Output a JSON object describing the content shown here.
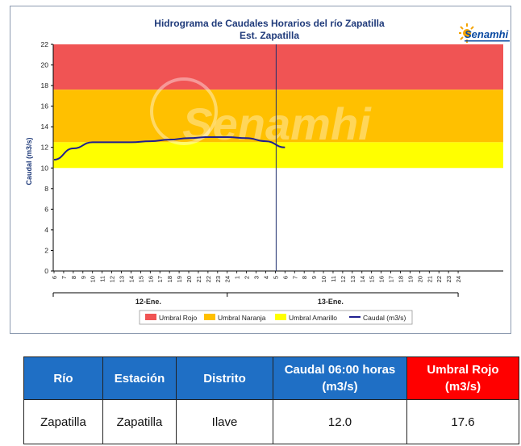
{
  "chart_data": {
    "type": "line",
    "title": "Hidrograma de Caudales Horarios del río Zapatilla",
    "subtitle": "Est. Zapatilla",
    "ylabel": "Caudal  (m3/s)",
    "xlabel": "",
    "ylim": [
      0,
      22
    ],
    "yticks": [
      0,
      2,
      4,
      6,
      8,
      10,
      12,
      14,
      16,
      18,
      20,
      22
    ],
    "x_tick_labels": [
      "6",
      "7",
      "8",
      "9",
      "10",
      "11",
      "12",
      "13",
      "14",
      "15",
      "16",
      "17",
      "18",
      "19",
      "20",
      "21",
      "22",
      "23",
      "24",
      "1",
      "2",
      "3",
      "4",
      "5",
      "6",
      "7",
      "8",
      "9",
      "10",
      "11",
      "12",
      "13",
      "14",
      "15",
      "16",
      "17",
      "18",
      "19",
      "20",
      "21",
      "22",
      "23",
      "24"
    ],
    "day_labels": [
      "12-Ene.",
      "13-Ene."
    ],
    "bands": [
      {
        "name": "Umbral Rojo",
        "from": 17.6,
        "to": 22,
        "color": "#f05454"
      },
      {
        "name": "Umbral Naranja",
        "from": 12.5,
        "to": 17.6,
        "color": "#ffc000"
      },
      {
        "name": "Umbral Amarillo",
        "from": 10.0,
        "to": 12.5,
        "color": "#ffff00"
      }
    ],
    "series": [
      {
        "name": "Caudal (m3/s)",
        "color": "#1f1f8f",
        "x": [
          0,
          2,
          4,
          6,
          8,
          10,
          12,
          14,
          16,
          18,
          20,
          22,
          24
        ],
        "values": [
          10.8,
          11.9,
          12.5,
          12.5,
          12.5,
          12.6,
          12.75,
          12.9,
          13.0,
          13.0,
          12.9,
          12.6,
          12.0
        ]
      }
    ],
    "current_time_index": 23,
    "legend_position": "bottom",
    "grid": false
  },
  "watermark": "Senamhi",
  "logo_text": "Senamhi",
  "table": {
    "headers": [
      "Río",
      "Estación",
      "Distrito",
      "Caudal 06:00 horas (m3/s)",
      "Umbral Rojo (m3/s)"
    ],
    "rows": [
      [
        "Zapatilla",
        "Zapatilla",
        "Ilave",
        "12.0",
        "17.6"
      ]
    ]
  }
}
